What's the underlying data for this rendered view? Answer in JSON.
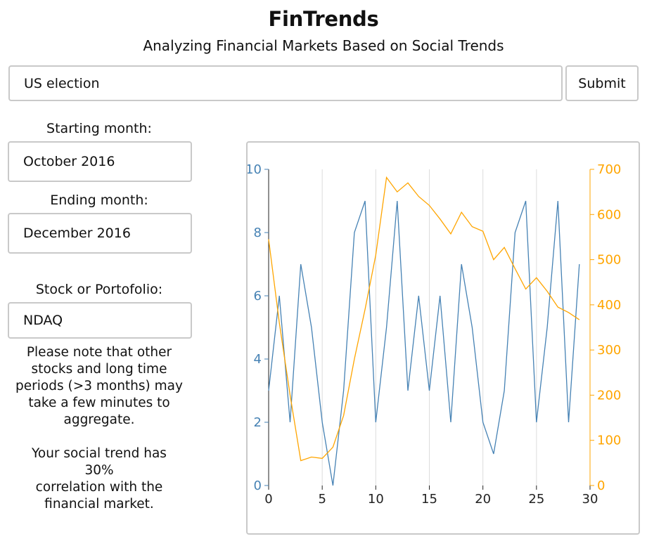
{
  "app": {
    "title": "FinTrends",
    "subtitle": "Analyzing Financial Markets Based on Social Trends"
  },
  "search": {
    "value": "US election",
    "submit_label": "Submit"
  },
  "form": {
    "start_label": "Starting month:",
    "start_value": "October 2016",
    "end_label": "Ending month:",
    "end_value": "December 2016",
    "stock_label": "Stock or Portofolio:",
    "stock_value": "NDAQ",
    "note_lines": [
      "Please note that other",
      "stocks and long time",
      "periods (>3 months) may",
      "take a few minutes to",
      "aggregate."
    ],
    "correlation_lines": [
      "Your social trend has",
      "30%",
      "correlation with the",
      "financial market."
    ]
  },
  "colors": {
    "social": "#4682b4",
    "market": "#ffa500"
  },
  "chart_data": {
    "type": "line",
    "x": [
      0,
      1,
      2,
      3,
      4,
      5,
      6,
      7,
      8,
      9,
      10,
      11,
      12,
      13,
      14,
      15,
      16,
      17,
      18,
      19,
      20,
      21,
      22,
      23,
      24,
      25,
      26,
      27,
      28,
      29
    ],
    "xlim": [
      0,
      30
    ],
    "x_ticks": [
      0,
      5,
      10,
      15,
      20,
      25,
      30
    ],
    "grid": "vertical",
    "series": [
      {
        "axis": "left",
        "color": "#4682b4",
        "ylim": [
          0,
          10
        ],
        "ticks": [
          0,
          2,
          4,
          6,
          8,
          10
        ],
        "values": [
          3,
          6,
          2,
          7,
          5,
          2,
          0,
          3,
          8,
          9,
          2,
          5,
          9,
          3,
          6,
          3,
          6,
          2,
          7,
          5,
          2,
          1,
          3,
          8,
          9,
          2,
          5,
          9,
          2,
          7
        ]
      },
      {
        "axis": "right",
        "color": "#ffa500",
        "ylim": [
          0,
          700
        ],
        "ticks": [
          0,
          100,
          200,
          300,
          400,
          500,
          600,
          700
        ],
        "values": [
          545,
          360,
          200,
          55,
          63,
          60,
          85,
          155,
          280,
          390,
          510,
          682,
          650,
          670,
          640,
          620,
          590,
          557,
          605,
          573,
          563,
          500,
          527,
          480,
          435,
          460,
          430,
          395,
          383,
          367
        ]
      }
    ]
  }
}
